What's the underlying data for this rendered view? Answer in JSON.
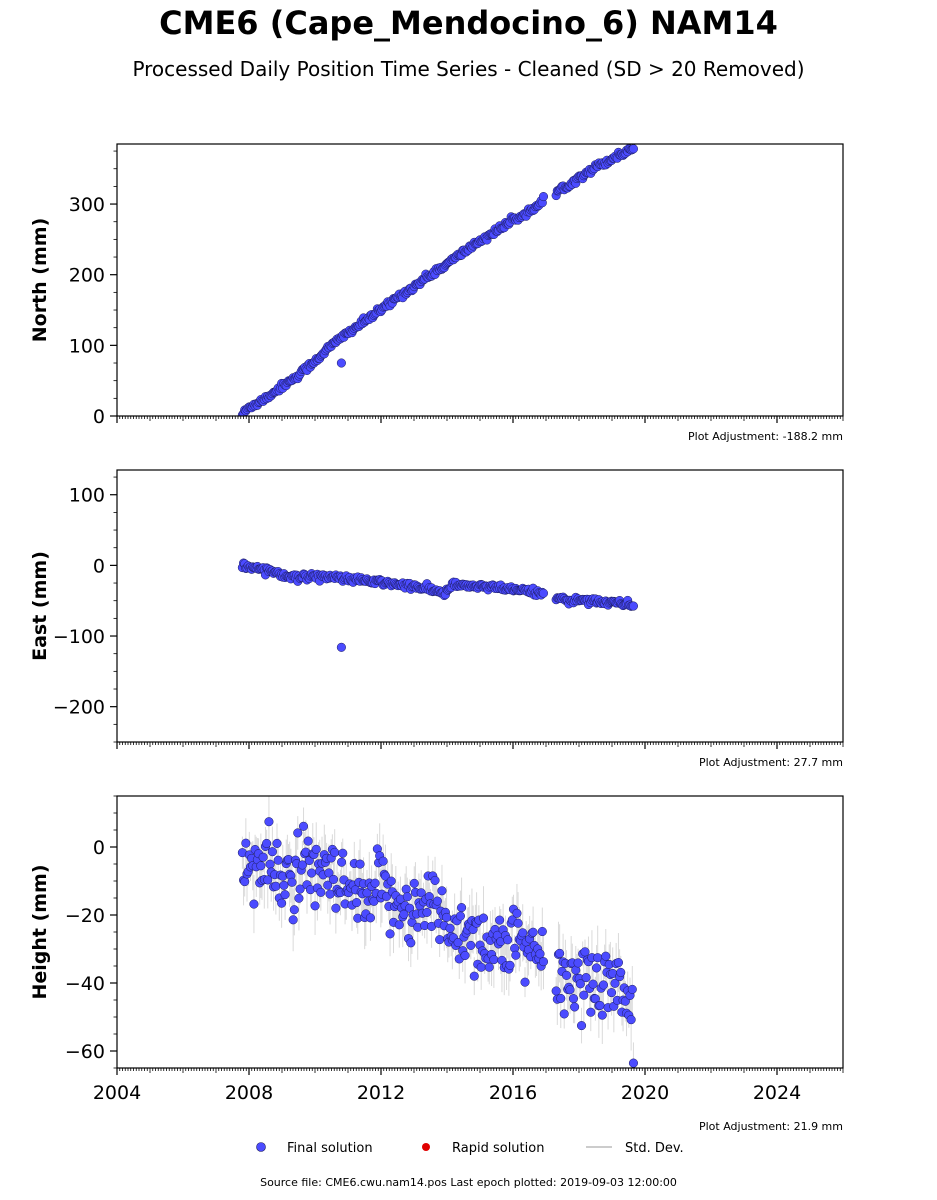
{
  "title": "CME6 (Cape_Mendocino_6) NAM14",
  "subtitle": "Processed Daily Position Time Series - Cleaned (SD > 20 Removed)",
  "footer": "Source file: CME6.cwu.nam14.pos  Last epoch plotted: 2019-09-03 12:00:00",
  "colors": {
    "final_solution": "#4b4bff",
    "final_solution_edge": "#1a1a5a",
    "rapid_solution": "#e00000",
    "std_dev": "#bbbbbb"
  },
  "legend": [
    {
      "label": "Final solution",
      "marker": "circle",
      "color": "#4b4bff"
    },
    {
      "label": "Rapid solution",
      "marker": "circle",
      "color": "#e00000"
    },
    {
      "label": "Std. Dev.",
      "marker": "line",
      "color": "#bbbbbb"
    }
  ],
  "chart_data": [
    {
      "type": "scatter",
      "ylabel": "North (mm)",
      "adjustment": "Plot Adjustment: -188.2 mm",
      "xlim": [
        2004.0,
        2026.0
      ],
      "ylim": [
        0,
        385
      ],
      "yticks": [
        0,
        100,
        200,
        300
      ],
      "xticks": [
        2004,
        2008,
        2012,
        2016,
        2020,
        2024
      ],
      "show_xticklabels": false,
      "gaps": [
        [
          2016.95,
          2017.3
        ]
      ],
      "series": [
        {
          "name": "Final solution",
          "x": [
            2007.8,
            2008.0,
            2008.5,
            2009.0,
            2009.5,
            2010.0,
            2010.5,
            2011.0,
            2011.5,
            2012.0,
            2012.5,
            2013.0,
            2013.5,
            2014.0,
            2014.5,
            2015.0,
            2015.5,
            2016.0,
            2016.5,
            2016.95,
            2017.35,
            2017.7,
            2018.0,
            2018.5,
            2019.0,
            2019.5,
            2019.65
          ],
          "y": [
            2,
            12,
            25,
            42,
            58,
            78,
            100,
            118,
            134,
            150,
            168,
            183,
            200,
            215,
            232,
            248,
            262,
            277,
            290,
            303,
            318,
            328,
            338,
            352,
            364,
            376,
            380
          ]
        },
        {
          "name": "Outlier",
          "x": [
            2010.8
          ],
          "y": [
            75
          ]
        }
      ],
      "noise_sd": 2.2,
      "errbar_sd": 3
    },
    {
      "type": "scatter",
      "ylabel": "East (mm)",
      "adjustment": "Plot Adjustment: 27.7 mm",
      "xlim": [
        2004.0,
        2026.0
      ],
      "ylim": [
        -250,
        135
      ],
      "yticks": [
        -200,
        -100,
        0,
        100
      ],
      "xticks": [
        2004,
        2008,
        2012,
        2016,
        2020,
        2024
      ],
      "show_xticklabels": false,
      "gaps": [
        [
          2016.95,
          2017.3
        ]
      ],
      "series": [
        {
          "name": "Final solution",
          "x": [
            2007.8,
            2008.2,
            2008.6,
            2009.0,
            2009.5,
            2010.0,
            2010.5,
            2011.0,
            2011.5,
            2012.0,
            2012.5,
            2013.0,
            2013.5,
            2013.9,
            2014.2,
            2014.6,
            2015.0,
            2015.5,
            2016.0,
            2016.5,
            2016.95,
            2017.35,
            2017.7,
            2018.0,
            2018.5,
            2019.0,
            2019.5,
            2019.65
          ],
          "y": [
            -1,
            -3,
            -7,
            -12,
            -18,
            -14,
            -17,
            -19,
            -22,
            -24,
            -27,
            -30,
            -34,
            -40,
            -27,
            -30,
            -29,
            -32,
            -34,
            -37,
            -40,
            -44,
            -52,
            -48,
            -50,
            -53,
            -55,
            -57
          ]
        },
        {
          "name": "Outlier",
          "x": [
            2010.8
          ],
          "y": [
            -116
          ]
        }
      ],
      "noise_sd": 2.2,
      "errbar_sd": 2.5
    },
    {
      "type": "scatter",
      "ylabel": "Height (mm)",
      "adjustment": "Plot Adjustment: 21.9 mm",
      "xlim": [
        2004.0,
        2026.0
      ],
      "ylim": [
        -65,
        15
      ],
      "yticks": [
        -60,
        -40,
        -20,
        0
      ],
      "xticks": [
        2004,
        2008,
        2012,
        2016,
        2020,
        2024
      ],
      "xticklabels": [
        "2004",
        "2008",
        "2012",
        "2016",
        "2020",
        "2024"
      ],
      "show_xticklabels": true,
      "gaps": [
        [
          2016.95,
          2017.3
        ]
      ],
      "series": [
        {
          "name": "Final solution",
          "x": [
            2007.8,
            2008.5,
            2009.0,
            2009.5,
            2010.0,
            2010.5,
            2011.0,
            2011.5,
            2012.0,
            2012.5,
            2013.0,
            2013.5,
            2014.0,
            2014.5,
            2015.0,
            2015.5,
            2016.0,
            2016.5,
            2016.95,
            2017.35,
            2017.8,
            2018.3,
            2018.8,
            2019.2,
            2019.65
          ],
          "y": [
            -4,
            -7,
            -8,
            -9,
            -8,
            -10,
            -14,
            -17,
            -13,
            -15,
            -19,
            -17,
            -22,
            -25,
            -27,
            -29,
            -28,
            -32,
            -34,
            -38,
            -40,
            -38,
            -39,
            -42,
            -48
          ]
        }
      ],
      "noise_sd": 5.5,
      "errbar_sd": 6
    }
  ]
}
